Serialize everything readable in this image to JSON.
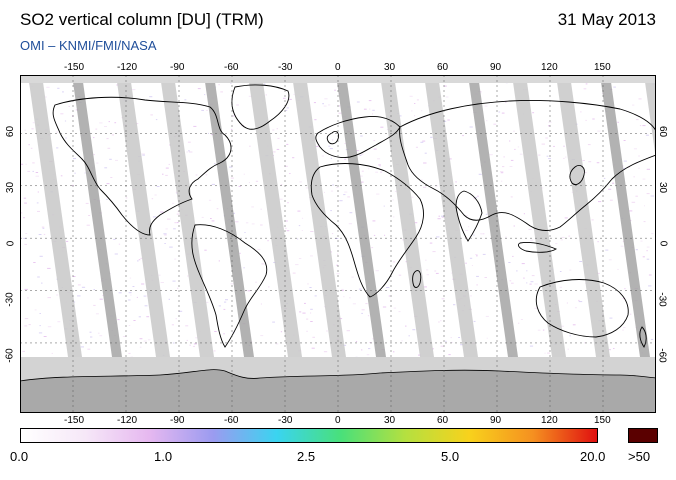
{
  "header": {
    "title": "SO2 vertical column [DU] (TRM)",
    "date": "31 May 2013",
    "credit": "OMI  –  KNMI/FMI/NASA"
  },
  "map": {
    "lon_ticks": [
      "-150",
      "-120",
      "-90",
      "-60",
      "-30",
      "0",
      "30",
      "60",
      "90",
      "120",
      "150"
    ],
    "lat_ticks": [
      "60",
      "30",
      "0",
      "-30",
      "-60"
    ],
    "colors": {
      "orbit_swath": "#c8c8c8",
      "orbit_gap_dark": "#a5a5a5",
      "polar_night": "#d3d3d3",
      "antarctica": "#a9a9a9",
      "coastline": "#000000",
      "grid": "#555555"
    }
  },
  "legend": {
    "labels": [
      "0.0",
      "1.0",
      "2.5",
      "5.0",
      "20.0"
    ],
    "overflow_label": ">50",
    "overflow_color": "#5a0000",
    "gradient_stops": [
      "#ffffff",
      "#f6e8f8",
      "#e6b8f0",
      "#9b9bf0",
      "#3ad4f0",
      "#49e07a",
      "#b4e040",
      "#f8d21c",
      "#f59020",
      "#e01010"
    ]
  }
}
